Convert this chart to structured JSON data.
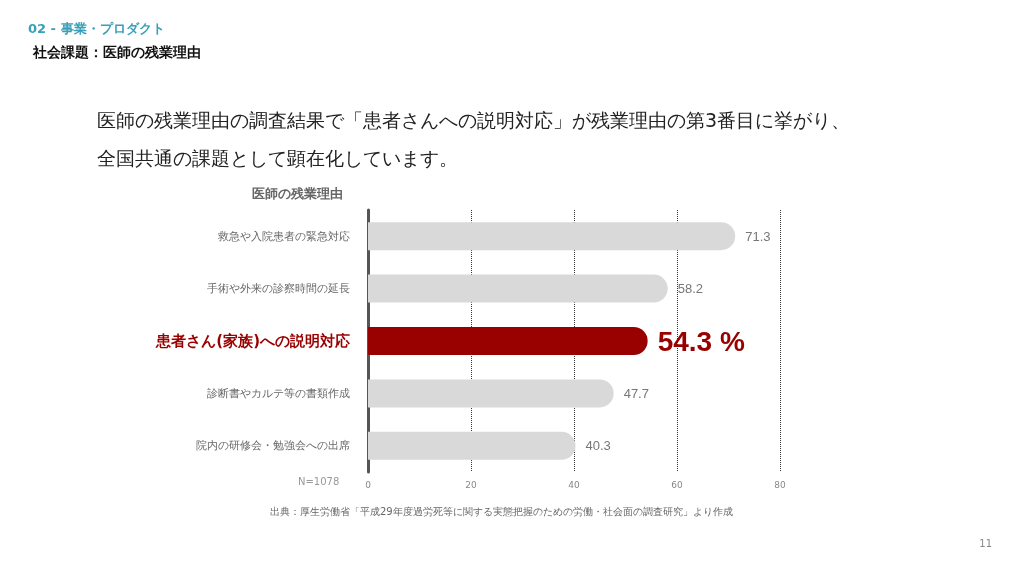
{
  "chart_data": {
    "type": "bar",
    "orientation": "horizontal",
    "title": "社会課題：医師の残業理由",
    "subtitle": "医師の残業理由の調査結果で「患者さんへの説明対応」が残業理由の第3番目に挙がり、全国共通の課題として顕在化しています。",
    "ylabel": "医師の残業理由",
    "categories": [
      "救急や入院患者の緊急対応",
      "手術や外来の診察時間の延長",
      "患者さん(家族)への説明対応",
      "診断書やカルテ等の書類作成",
      "院内の研修会・勉強会への出席"
    ],
    "values": [
      71.3,
      58.2,
      54.3,
      47.7,
      40.3
    ],
    "colors": [
      "#d9d9d9",
      "#d9d9d9",
      "#990000",
      "#d9d9d9",
      "#d9d9d9"
    ],
    "value_labels": [
      "71.3",
      "58.2",
      "54.3 %",
      "47.7",
      "40.3"
    ],
    "xlim": [
      0,
      80
    ],
    "xticks": [
      0,
      20,
      40,
      60,
      80
    ],
    "grid": "x",
    "annotations": [
      "02 - 事業・プロダクト",
      "N=1078",
      "出典：厚生労働省「平成29年度過労死等に関する実態把握のための労働・社会面の調査研究」より作成",
      "11"
    ]
  }
}
